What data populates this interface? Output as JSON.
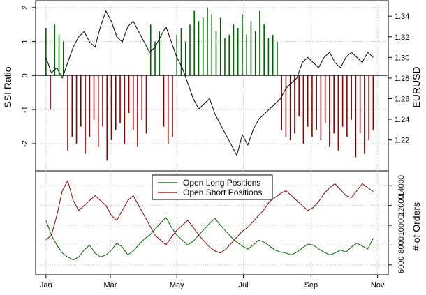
{
  "chart_data": [
    {
      "type": "bar",
      "subtype": "bar+line",
      "ylabel_left": "SSI Ratio",
      "ylabel_right": "EURUSD",
      "ylim_left": [
        -2.8,
        2.2
      ],
      "ylim_right": [
        1.19,
        1.355
      ],
      "yticks_left": [
        "-2",
        "-1",
        "0",
        "1",
        "2"
      ],
      "yticks_right": [
        "1.22",
        "1.24",
        "1.26",
        "1.28",
        "1.30",
        "1.32",
        "1.34"
      ],
      "xlim_days": [
        -5,
        310
      ],
      "xticks": [
        "Jan",
        "Mar",
        "May",
        "Jul",
        "Sep",
        "Nov"
      ],
      "grid": true,
      "colors": {
        "positive": "#006400",
        "negative": "#8b0000",
        "line": "#000000",
        "grid": "#bfbfbf"
      },
      "ssi_ratio": {
        "x": [
          0,
          4,
          8,
          12,
          16,
          20,
          24,
          28,
          32,
          36,
          40,
          44,
          48,
          52,
          56,
          60,
          64,
          68,
          72,
          76,
          80,
          84,
          88,
          92,
          96,
          100,
          104,
          108,
          112,
          116,
          120,
          124,
          128,
          132,
          136,
          140,
          144,
          148,
          152,
          156,
          160,
          164,
          168,
          172,
          176,
          180,
          184,
          188,
          192,
          196,
          200,
          204,
          208,
          212,
          216,
          220,
          224,
          228,
          232,
          236,
          240,
          244,
          248,
          252,
          256,
          260,
          264,
          268,
          272,
          276,
          280,
          284,
          288,
          292,
          296,
          300
        ],
        "values": [
          1.4,
          -1.0,
          1.5,
          1.2,
          1.0,
          -2.2,
          -1.8,
          -2.0,
          -1.5,
          -2.3,
          -1.8,
          -1.3,
          -2.1,
          -1.5,
          -2.5,
          -1.9,
          -1.6,
          -1.4,
          -2.0,
          -1.1,
          -1.6,
          -2.1,
          -1.3,
          -1.7,
          1.5,
          1.0,
          1.3,
          -1.5,
          -2.0,
          -1.8,
          1.2,
          1.4,
          1.0,
          1.5,
          1.9,
          1.6,
          1.7,
          2.0,
          1.8,
          1.3,
          1.7,
          1.1,
          1.2,
          1.5,
          1.4,
          1.8,
          1.2,
          1.6,
          1.3,
          1.9,
          1.5,
          1.1,
          1.2,
          1.0,
          -1.6,
          -1.8,
          -1.9,
          -1.7,
          -1.2,
          -2.0,
          -1.5,
          -1.8,
          -1.6,
          -1.9,
          -1.4,
          -2.1,
          -1.7,
          -2.2,
          -1.5,
          -1.8,
          -1.3,
          -2.4,
          -1.7,
          -2.3,
          -1.9,
          -1.6
        ]
      },
      "eurusd": {
        "x": [
          0,
          5,
          10,
          15,
          20,
          25,
          30,
          35,
          40,
          45,
          50,
          55,
          60,
          65,
          70,
          75,
          80,
          85,
          90,
          95,
          100,
          105,
          110,
          115,
          120,
          125,
          130,
          135,
          140,
          145,
          150,
          155,
          160,
          165,
          170,
          175,
          180,
          185,
          190,
          195,
          200,
          205,
          210,
          215,
          220,
          225,
          230,
          235,
          240,
          245,
          250,
          255,
          260,
          265,
          270,
          275,
          280,
          285,
          290,
          295,
          300
        ],
        "values": [
          1.3,
          1.285,
          1.29,
          1.28,
          1.295,
          1.31,
          1.32,
          1.325,
          1.315,
          1.31,
          1.33,
          1.345,
          1.335,
          1.32,
          1.315,
          1.33,
          1.335,
          1.325,
          1.315,
          1.305,
          1.31,
          1.32,
          1.33,
          1.315,
          1.3,
          1.29,
          1.275,
          1.26,
          1.25,
          1.255,
          1.26,
          1.245,
          1.235,
          1.225,
          1.215,
          1.205,
          1.225,
          1.215,
          1.23,
          1.24,
          1.245,
          1.25,
          1.255,
          1.26,
          1.27,
          1.275,
          1.28,
          1.295,
          1.3,
          1.295,
          1.29,
          1.3,
          1.305,
          1.295,
          1.29,
          1.3,
          1.305,
          1.3,
          1.295,
          1.305,
          1.3
        ]
      }
    },
    {
      "type": "line",
      "ylabel_right": "# of Orders",
      "ylim": [
        5000,
        15500
      ],
      "yticks_right": [
        "6000",
        "8000",
        "10000",
        "12000",
        "14000"
      ],
      "xticks": [
        "Jan",
        "Mar",
        "May",
        "Jul",
        "Sep",
        "Nov"
      ],
      "grid": true,
      "legend_placement": "top-center",
      "series": [
        {
          "name": "Open Long Positions",
          "color": "#006400",
          "x": [
            0,
            5,
            10,
            15,
            20,
            25,
            30,
            35,
            40,
            45,
            50,
            55,
            60,
            65,
            70,
            75,
            80,
            85,
            90,
            95,
            100,
            105,
            110,
            115,
            120,
            125,
            130,
            135,
            140,
            145,
            150,
            155,
            160,
            165,
            170,
            175,
            180,
            185,
            190,
            195,
            200,
            205,
            210,
            215,
            220,
            225,
            230,
            235,
            240,
            245,
            250,
            255,
            260,
            265,
            270,
            275,
            280,
            285,
            290,
            295,
            300
          ],
          "values": [
            10500,
            9000,
            8000,
            7200,
            6800,
            6500,
            6800,
            7500,
            8000,
            7200,
            6800,
            7000,
            7500,
            8200,
            7800,
            7000,
            7400,
            8000,
            8600,
            9000,
            9600,
            10200,
            10800,
            9800,
            9000,
            8500,
            8000,
            8400,
            9000,
            9600,
            10200,
            10700,
            10000,
            9400,
            8800,
            8300,
            7900,
            7600,
            8000,
            8500,
            8300,
            7900,
            7500,
            7300,
            7200,
            7000,
            7300,
            7700,
            8100,
            8000,
            7600,
            7300,
            7000,
            7200,
            7500,
            7300,
            7800,
            8200,
            7900,
            7600,
            8700
          ]
        },
        {
          "name": "Open Short Positions",
          "color": "#8b0000",
          "x": [
            0,
            5,
            10,
            15,
            20,
            25,
            30,
            35,
            40,
            45,
            50,
            55,
            60,
            65,
            70,
            75,
            80,
            85,
            90,
            95,
            100,
            105,
            110,
            115,
            120,
            125,
            130,
            135,
            140,
            145,
            150,
            155,
            160,
            165,
            170,
            175,
            180,
            185,
            190,
            195,
            200,
            205,
            210,
            215,
            220,
            225,
            230,
            235,
            240,
            245,
            250,
            255,
            260,
            265,
            270,
            275,
            280,
            285,
            290,
            295,
            300
          ],
          "values": [
            8500,
            9000,
            11000,
            13500,
            14500,
            12500,
            11500,
            12000,
            12500,
            13000,
            12500,
            12000,
            11000,
            10500,
            11500,
            12500,
            13000,
            12000,
            11000,
            10000,
            9000,
            8500,
            8000,
            8800,
            9500,
            10000,
            10500,
            9800,
            9000,
            8400,
            7800,
            7400,
            7200,
            7600,
            8200,
            8800,
            9400,
            9800,
            10400,
            11000,
            11600,
            12400,
            12800,
            13200,
            13500,
            13000,
            12500,
            12000,
            11500,
            11800,
            12400,
            13200,
            13800,
            14200,
            13600,
            13000,
            12800,
            13500,
            14200,
            13800,
            13400
          ]
        }
      ]
    }
  ]
}
